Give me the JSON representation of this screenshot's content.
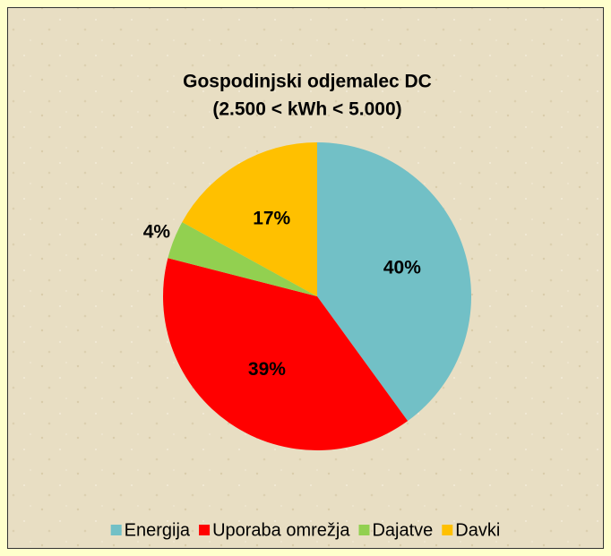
{
  "chart_data": {
    "type": "pie",
    "title": "Gospodinjski odjemalec DC",
    "subtitle": "(2.500 < kWh < 5.000)",
    "categories": [
      "Energija",
      "Uporaba omrežja",
      "Dajatve",
      "Davki"
    ],
    "values": [
      40,
      39,
      4,
      17
    ],
    "value_labels": [
      "40%",
      "39%",
      "4%",
      "17%"
    ],
    "colors": [
      "#72c0c6",
      "#ff0000",
      "#92d050",
      "#ffc000"
    ],
    "legend": "bottom"
  }
}
